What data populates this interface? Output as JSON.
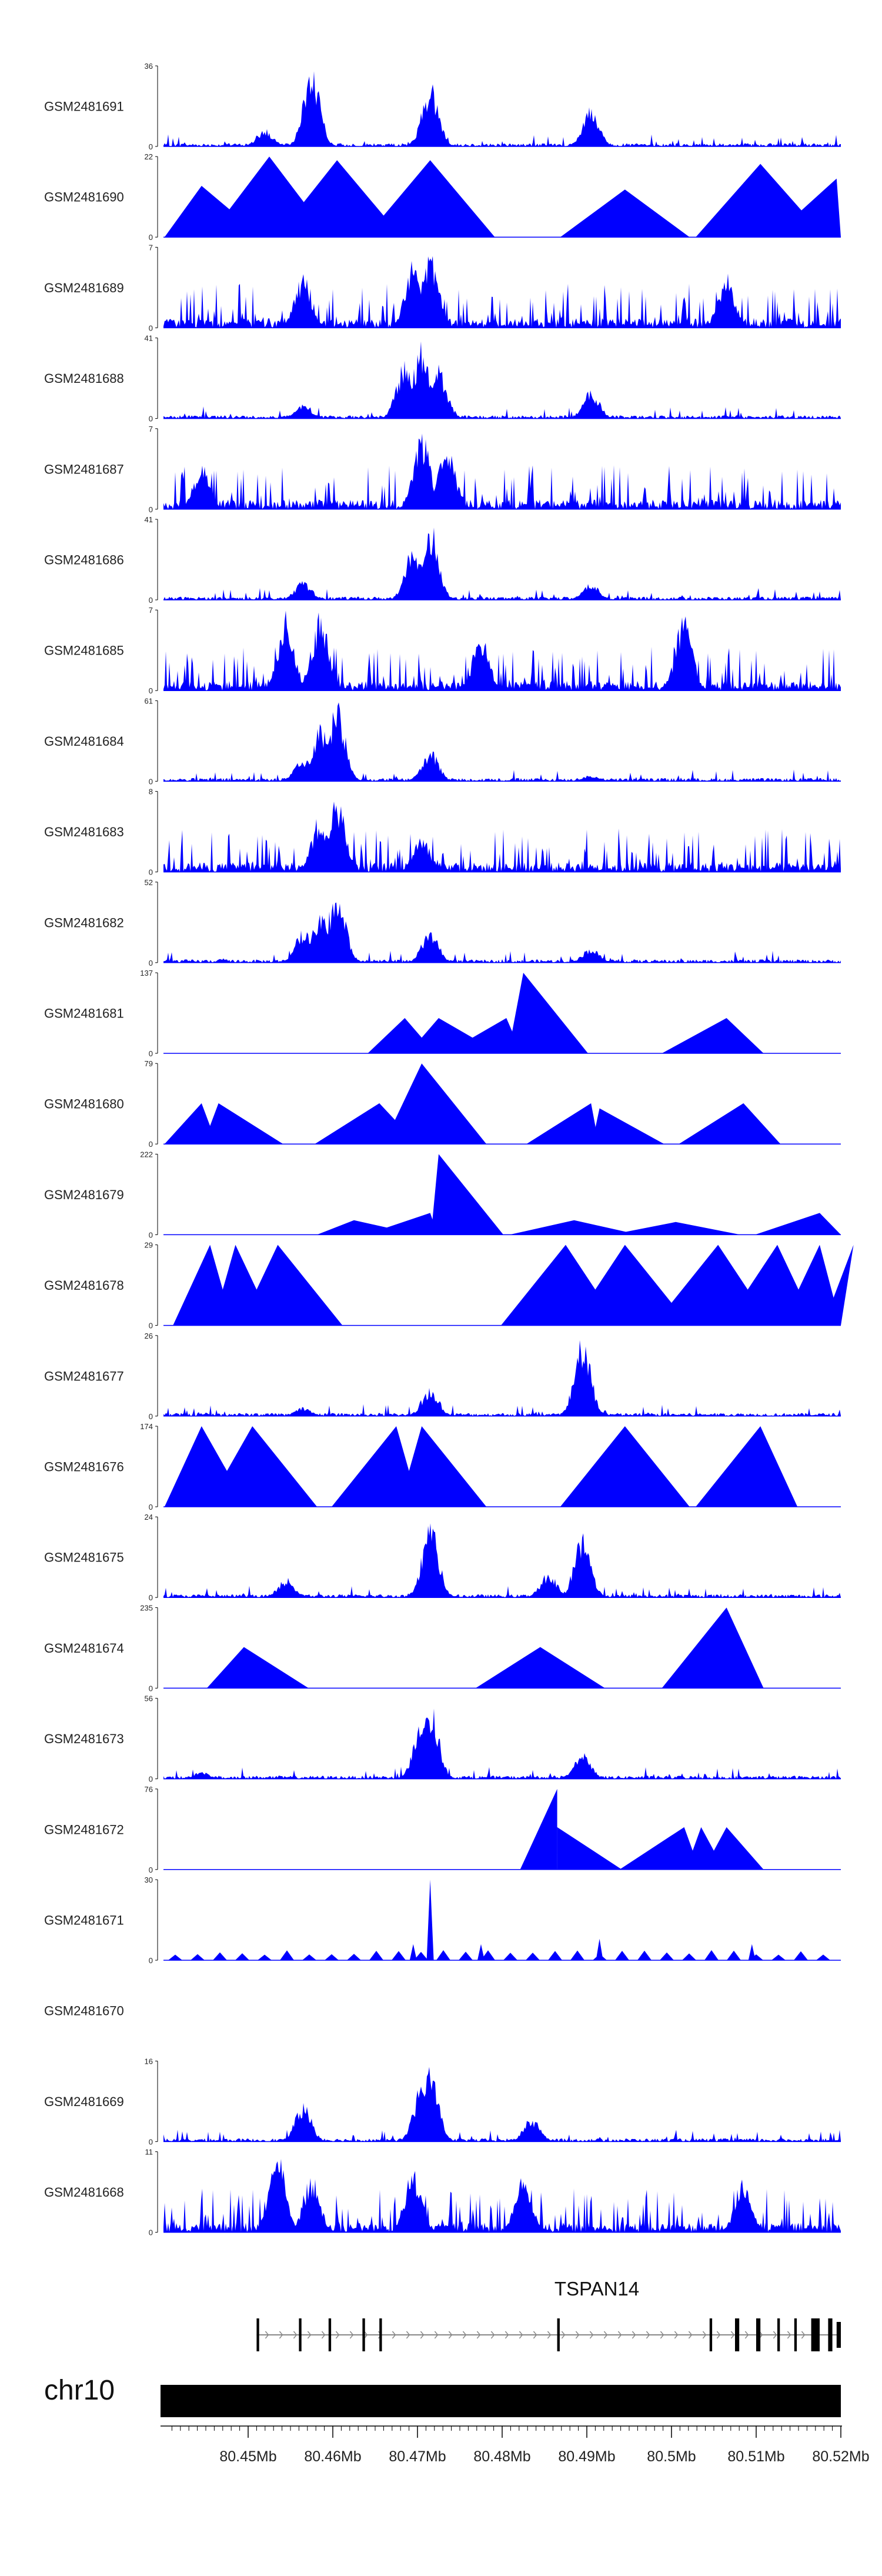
{
  "colors": {
    "signal": "#0000ff",
    "axis": "#000000",
    "intron": "#888888",
    "text": "#222222"
  },
  "chart_data": {
    "type": "area",
    "title": "",
    "region": {
      "chromosome": "chr10",
      "start_mb": 80.44,
      "end_mb": 80.52
    },
    "xlabel": "",
    "ylabel": "",
    "x_ticks": [
      "80.45Mb",
      "80.46Mb",
      "80.47Mb",
      "80.48Mb",
      "80.49Mb",
      "80.5Mb",
      "80.51Mb",
      "80.52Mb"
    ],
    "x_tick_values_mb": [
      80.45,
      80.46,
      80.47,
      80.48,
      80.49,
      80.5,
      80.51,
      80.52
    ],
    "series": [
      {
        "name": "GSM2481691",
        "ymax": 36,
        "profile": "dense",
        "peaks": [
          [
            80.4575,
            36
          ],
          [
            80.4715,
            30
          ],
          [
            80.4905,
            18
          ],
          [
            80.452,
            8
          ]
        ]
      },
      {
        "name": "GSM2481690",
        "ymax": 22,
        "profile": "sparse",
        "peaks": [
          [
            80.4525,
            22
          ],
          [
            80.4605,
            21
          ],
          [
            80.4715,
            21
          ],
          [
            80.5105,
            20
          ],
          [
            80.4445,
            14
          ],
          [
            80.4945,
            13
          ],
          [
            80.5195,
            16
          ]
        ]
      },
      {
        "name": "GSM2481689",
        "ymax": 7,
        "profile": "noisy",
        "peaks": [
          [
            80.4715,
            7
          ],
          [
            80.4695,
            6
          ],
          [
            80.5065,
            5
          ],
          [
            80.4565,
            5
          ]
        ]
      },
      {
        "name": "GSM2481688",
        "ymax": 41,
        "profile": "dense",
        "peaks": [
          [
            80.4705,
            41
          ],
          [
            80.4685,
            30
          ],
          [
            80.4725,
            28
          ],
          [
            80.4905,
            15
          ],
          [
            80.4565,
            8
          ]
        ]
      },
      {
        "name": "GSM2481687",
        "ymax": 7,
        "profile": "noisy",
        "peaks": [
          [
            80.4705,
            7
          ],
          [
            80.4735,
            6
          ],
          [
            80.4445,
            4
          ]
        ]
      },
      {
        "name": "GSM2481686",
        "ymax": 41,
        "profile": "dense",
        "peaks": [
          [
            80.4715,
            41
          ],
          [
            80.4695,
            30
          ],
          [
            80.4565,
            10
          ],
          [
            80.4905,
            9
          ]
        ]
      },
      {
        "name": "GSM2481685",
        "ymax": 7,
        "profile": "noisy",
        "peaks": [
          [
            80.4545,
            7
          ],
          [
            80.4585,
            7
          ],
          [
            80.5015,
            7
          ],
          [
            80.4775,
            5
          ]
        ]
      },
      {
        "name": "GSM2481684",
        "ymax": 61,
        "profile": "dense",
        "peaks": [
          [
            80.4605,
            61
          ],
          [
            80.4585,
            45
          ],
          [
            80.4565,
            18
          ],
          [
            80.4715,
            25
          ],
          [
            80.4905,
            5
          ]
        ]
      },
      {
        "name": "GSM2481683",
        "ymax": 8,
        "profile": "noisy",
        "peaks": [
          [
            80.4605,
            8
          ],
          [
            80.4585,
            6
          ],
          [
            80.4705,
            4
          ]
        ]
      },
      {
        "name": "GSM2481682",
        "ymax": 52,
        "profile": "dense",
        "peaks": [
          [
            80.4605,
            52
          ],
          [
            80.4585,
            35
          ],
          [
            80.4565,
            22
          ],
          [
            80.4715,
            22
          ],
          [
            80.4905,
            10
          ]
        ]
      },
      {
        "name": "GSM2481681",
        "ymax": 137,
        "profile": "sparse",
        "peaks": [
          [
            80.4685,
            60
          ],
          [
            80.4725,
            60
          ],
          [
            80.4805,
            60
          ],
          [
            80.4825,
            137
          ],
          [
            80.5065,
            60
          ]
        ]
      },
      {
        "name": "GSM2481680",
        "ymax": 79,
        "profile": "sparse",
        "peaks": [
          [
            80.4445,
            40
          ],
          [
            80.4465,
            40
          ],
          [
            80.4655,
            40
          ],
          [
            80.4705,
            79
          ],
          [
            80.4905,
            40
          ],
          [
            80.4915,
            35
          ],
          [
            80.5085,
            40
          ]
        ]
      },
      {
        "name": "GSM2481679",
        "ymax": 222,
        "profile": "sparse",
        "peaks": [
          [
            80.4725,
            222
          ],
          [
            80.4715,
            60
          ],
          [
            80.5175,
            60
          ],
          [
            80.4625,
            40
          ],
          [
            80.4885,
            40
          ],
          [
            80.5005,
            35
          ]
        ]
      },
      {
        "name": "GSM2481678",
        "ymax": 29,
        "profile": "sparse",
        "peaks": [
          [
            80.4455,
            29
          ],
          [
            80.4485,
            29
          ],
          [
            80.4535,
            29
          ],
          [
            80.4875,
            29
          ],
          [
            80.4945,
            29
          ],
          [
            80.5055,
            29
          ],
          [
            80.5125,
            29
          ],
          [
            80.5175,
            29
          ],
          [
            80.5215,
            29
          ]
        ]
      },
      {
        "name": "GSM2481677",
        "ymax": 26,
        "profile": "dense",
        "peaks": [
          [
            80.4895,
            26
          ],
          [
            80.4715,
            10
          ],
          [
            80.4565,
            3
          ]
        ]
      },
      {
        "name": "GSM2481676",
        "ymax": 174,
        "profile": "sparse",
        "peaks": [
          [
            80.4445,
            174
          ],
          [
            80.4505,
            174
          ],
          [
            80.4675,
            174
          ],
          [
            80.4705,
            174
          ],
          [
            80.4945,
            174
          ],
          [
            80.5105,
            174
          ]
        ]
      },
      {
        "name": "GSM2481675",
        "ymax": 24,
        "profile": "dense",
        "peaks": [
          [
            80.4715,
            24
          ],
          [
            80.4895,
            20
          ],
          [
            80.4855,
            8
          ],
          [
            80.4545,
            6
          ]
        ]
      },
      {
        "name": "GSM2481674",
        "ymax": 235,
        "profile": "sparse",
        "peaks": [
          [
            80.4495,
            120
          ],
          [
            80.4845,
            120
          ],
          [
            80.5065,
            235
          ]
        ]
      },
      {
        "name": "GSM2481673",
        "ymax": 56,
        "profile": "dense",
        "peaks": [
          [
            80.4715,
            56
          ],
          [
            80.4705,
            40
          ],
          [
            80.4895,
            20
          ],
          [
            80.4445,
            5
          ]
        ]
      },
      {
        "name": "GSM2481672",
        "ymax": 76,
        "profile": "sparse",
        "peaks": [
          [
            80.4865,
            76
          ],
          [
            80.4865,
            40
          ],
          [
            80.5015,
            40
          ],
          [
            80.5035,
            40
          ],
          [
            80.5065,
            40
          ]
        ]
      },
      {
        "name": "GSM2481671",
        "ymax": 30,
        "profile": "sparse-many",
        "peaks": [
          [
            80.4715,
            30
          ],
          [
            80.4695,
            6
          ],
          [
            80.4775,
            6
          ],
          [
            80.4915,
            8
          ],
          [
            80.5095,
            6
          ]
        ]
      },
      {
        "name": "GSM2481670",
        "ymax": null,
        "profile": "empty",
        "peaks": []
      },
      {
        "name": "GSM2481669",
        "ymax": 16,
        "profile": "dense",
        "peaks": [
          [
            80.4715,
            16
          ],
          [
            80.4705,
            12
          ],
          [
            80.4565,
            8
          ],
          [
            80.4835,
            5
          ]
        ]
      },
      {
        "name": "GSM2481668",
        "ymax": 11,
        "profile": "noisy",
        "peaks": [
          [
            80.4535,
            11
          ],
          [
            80.4575,
            8
          ],
          [
            80.4695,
            9
          ],
          [
            80.4825,
            8
          ],
          [
            80.5085,
            8
          ]
        ]
      }
    ],
    "gene": {
      "name": "TSPAN14",
      "start_mb": 80.451,
      "end_mb": 80.52,
      "exons_mb": [
        [
          80.451,
          80.4513
        ],
        [
          80.456,
          80.4563
        ],
        [
          80.4595,
          80.4598
        ],
        [
          80.4635,
          80.4638
        ],
        [
          80.4655,
          80.4658
        ],
        [
          80.4865,
          80.4868
        ],
        [
          80.5045,
          80.5048
        ],
        [
          80.5075,
          80.508
        ],
        [
          80.51,
          80.5105
        ],
        [
          80.5125,
          80.5128
        ],
        [
          80.5145,
          80.5148
        ],
        [
          80.5165,
          80.5175
        ],
        [
          80.5185,
          80.519
        ],
        [
          80.5195,
          80.52
        ]
      ]
    },
    "ideogram_label": "chr10"
  }
}
